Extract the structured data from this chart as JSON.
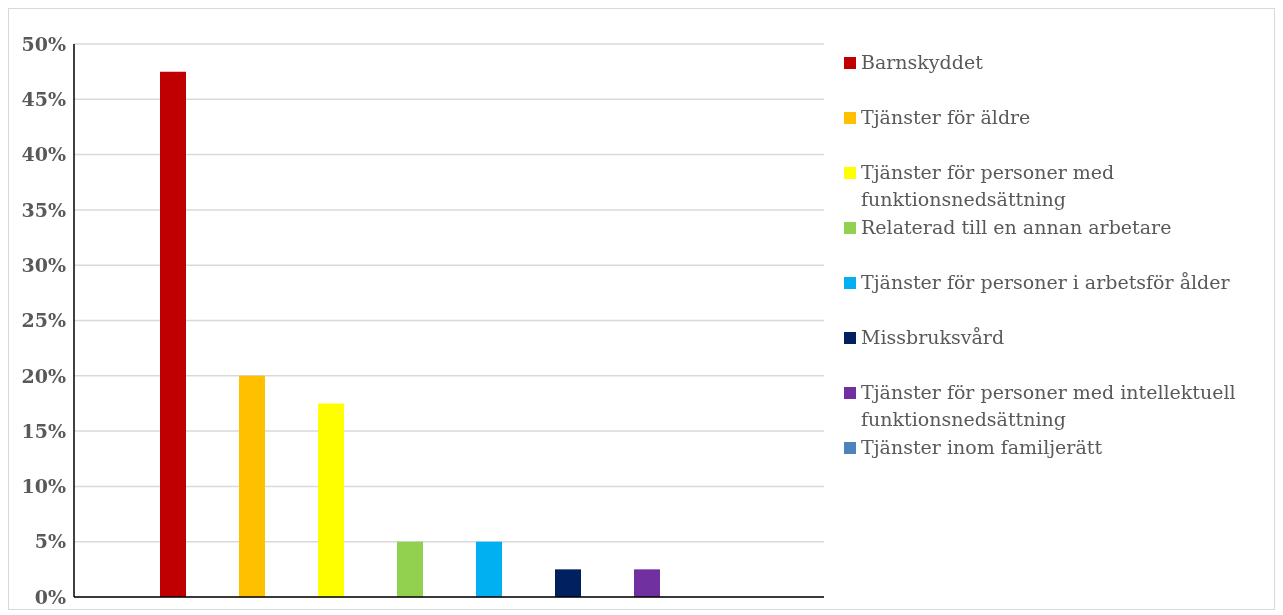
{
  "chart_data": {
    "type": "bar",
    "categories": [
      null
    ],
    "series": [
      {
        "name": "Barnskyddet",
        "color": "#c00000",
        "values": [
          47.5
        ]
      },
      {
        "name": "Tjänster för äldre",
        "color": "#ffc000",
        "values": [
          20
        ]
      },
      {
        "name": "Tjänster för personer med funktionsnedsättning",
        "color": "#ffff00",
        "values": [
          17.5
        ]
      },
      {
        "name": "Relaterad till en annan arbetare",
        "color": "#92d050",
        "values": [
          5
        ]
      },
      {
        "name": "Tjänster för personer i arbetsför ålder",
        "color": "#00b0f0",
        "values": [
          5
        ]
      },
      {
        "name": "Missbruksvård",
        "color": "#002060",
        "values": [
          2.5
        ]
      },
      {
        "name": "Tjänster för personer med intellektuell funktionsnedsättning",
        "color": "#7030a0",
        "values": [
          2.5
        ]
      },
      {
        "name": "Tjänster inom familjerätt",
        "color": "#4f81bd",
        "values": [
          0
        ]
      }
    ],
    "ylim": [
      0,
      50
    ],
    "yticks": [
      {
        "value": 0,
        "label": "0%"
      },
      {
        "value": 5,
        "label": "5%"
      },
      {
        "value": 10,
        "label": "10%"
      },
      {
        "value": 15,
        "label": "15%"
      },
      {
        "value": 20,
        "label": "20%"
      },
      {
        "value": 25,
        "label": "25%"
      },
      {
        "value": 30,
        "label": "30%"
      },
      {
        "value": 35,
        "label": "35%"
      },
      {
        "value": 40,
        "label": "40%"
      },
      {
        "value": 45,
        "label": "45%"
      },
      {
        "value": 50,
        "label": "50%"
      }
    ],
    "grid": "y",
    "legend": "right",
    "tick_labels": "y"
  }
}
